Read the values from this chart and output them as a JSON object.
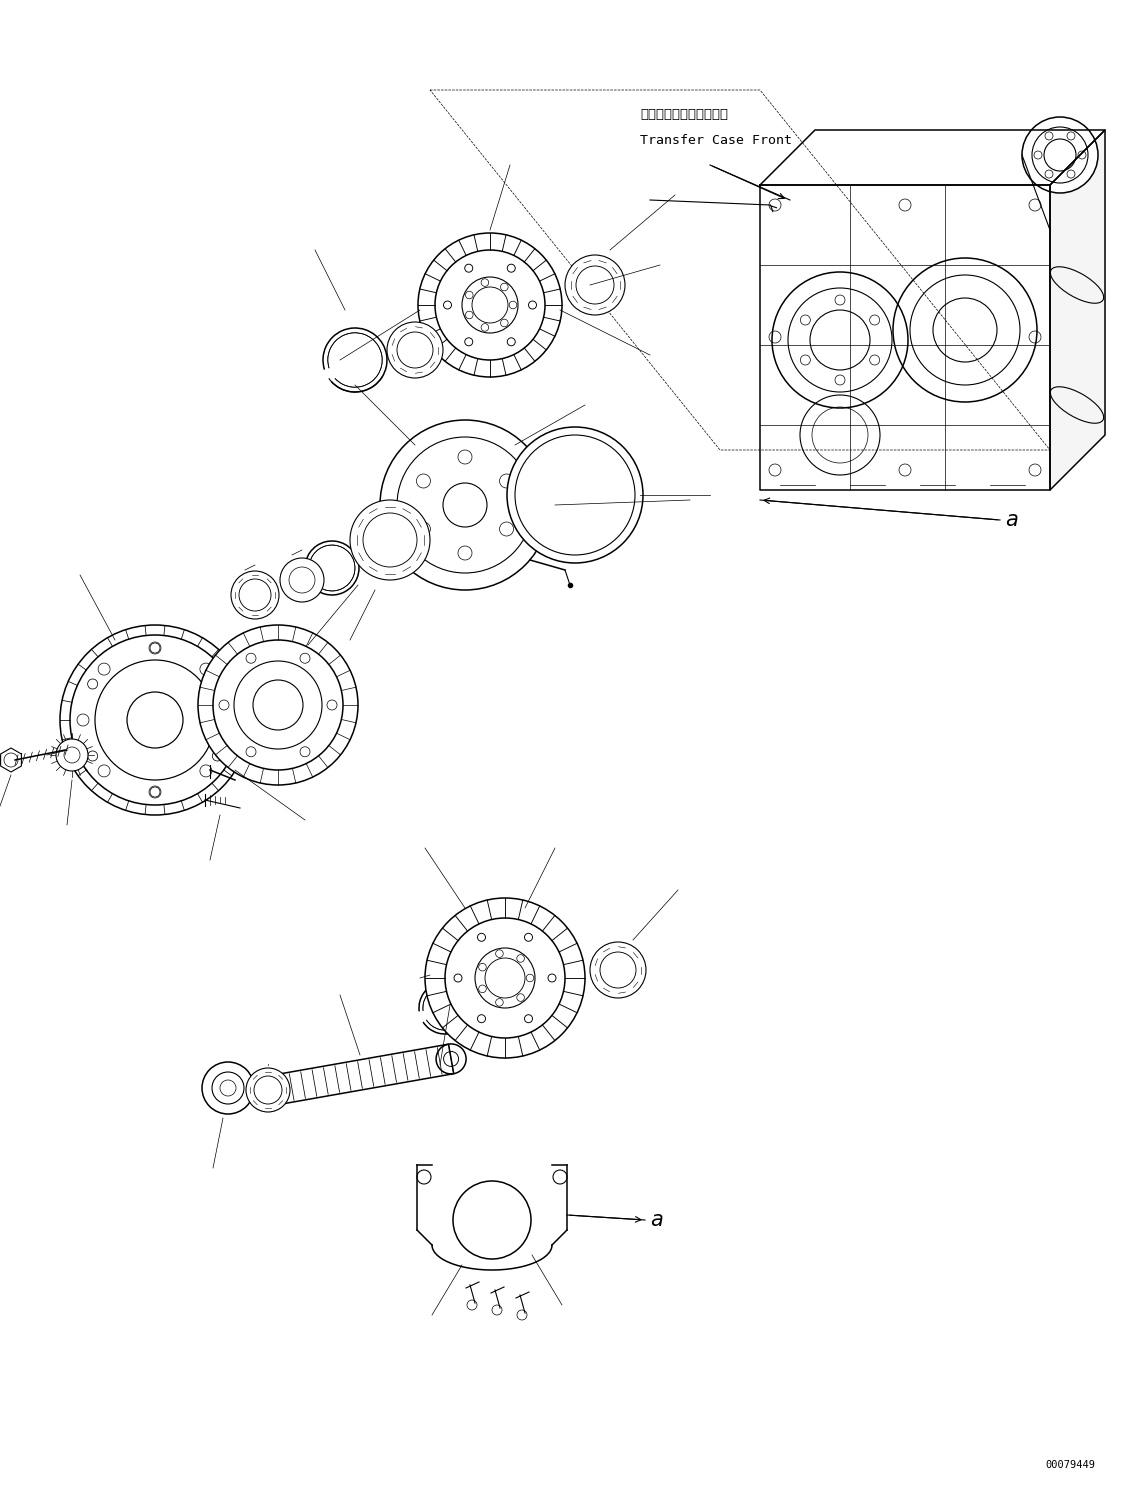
{
  "bg_color": "#ffffff",
  "line_color": "#000000",
  "annotation_label_jp": "トランスファケース前方",
  "annotation_label_en": "Transfer Case Front",
  "annotation_a1": "a",
  "annotation_a2": "a",
  "part_number": "00079449",
  "figsize": [
    11.37,
    14.86
  ],
  "dpi": 100
}
